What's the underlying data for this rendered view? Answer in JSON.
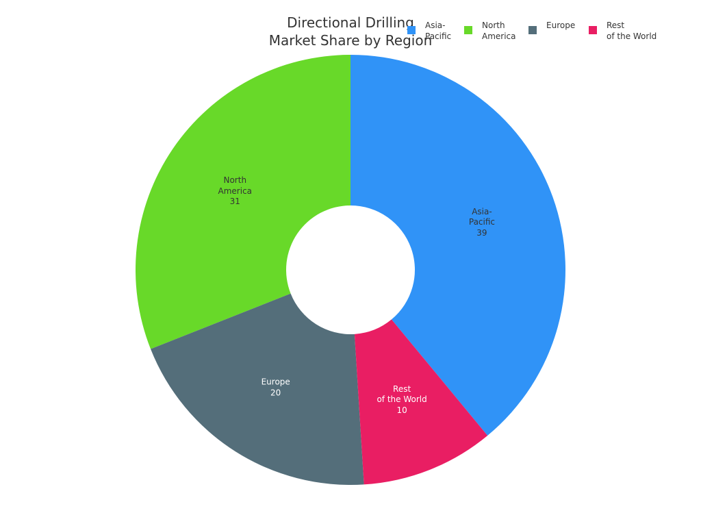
{
  "chart_data": {
    "type": "donut",
    "title": "Directional Drilling\nMarket Share by Region",
    "categories": [
      "Asia-\nPacific",
      "North\nAmerica",
      "Europe",
      "Rest\nof the World"
    ],
    "values": [
      39,
      31,
      20,
      10
    ],
    "colors": [
      "#3093f7",
      "#68d929",
      "#546e7a",
      "#e91e63"
    ],
    "label_colors": [
      "#333333",
      "#333333",
      "#ffffff",
      "#ffffff"
    ]
  }
}
